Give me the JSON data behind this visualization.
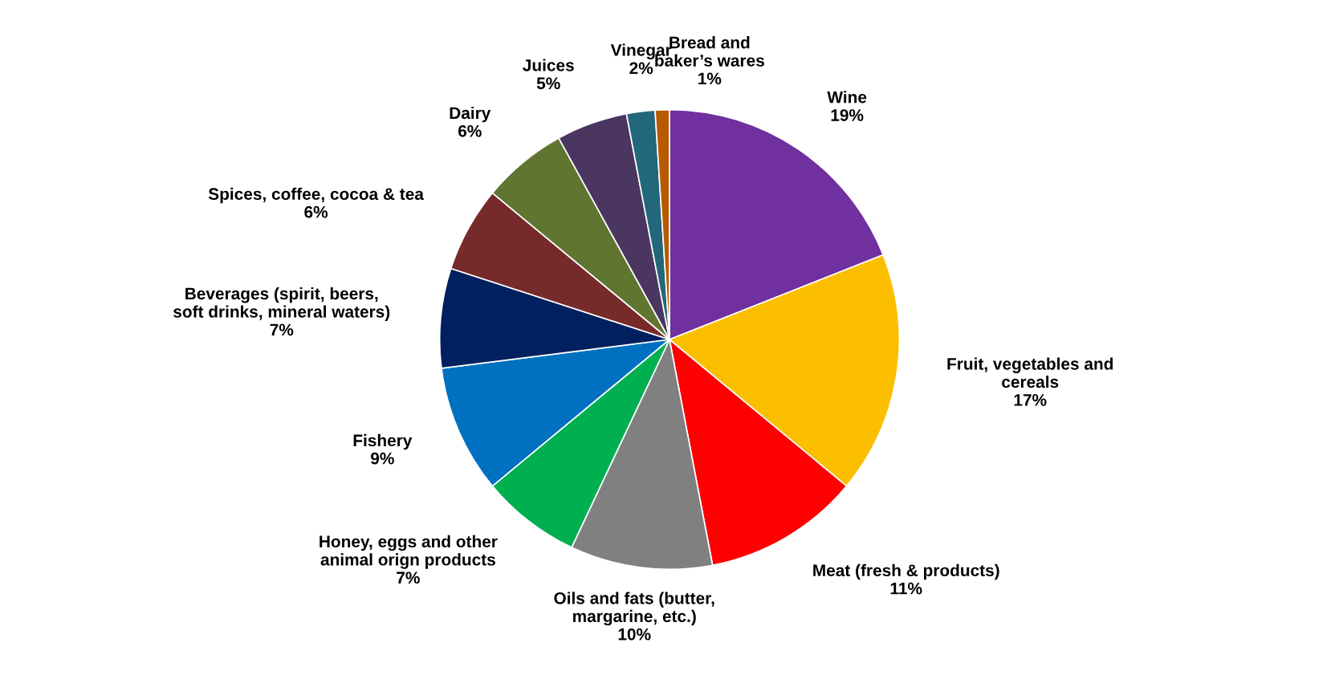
{
  "chart_data": {
    "type": "pie",
    "categories": [
      "Wine",
      "Fruit, vegetables and\ncereals",
      "Meat (fresh & products)",
      "Oils and fats (butter,\nmargarine, etc.)",
      "Honey, eggs and other\nanimal orign products",
      "Fishery",
      "Beverages (spirit, beers,\nsoft drinks, mineral waters)",
      "Spices, coffee, cocoa & tea",
      "Dairy",
      "Juices",
      "Vinegar",
      "Bread and\nbaker’s wares"
    ],
    "values": [
      19,
      17,
      11,
      10,
      7,
      9,
      7,
      6,
      6,
      5,
      2,
      1
    ],
    "value_labels": [
      "19%",
      "17%",
      "11%",
      "10%",
      "7%",
      "9%",
      "7%",
      "6%",
      "6%",
      "5%",
      "2%",
      "1%"
    ],
    "colors": [
      "#7030a0",
      "#fbbf00",
      "#ff0000",
      "#808080",
      "#00b050",
      "#0070c0",
      "#002060",
      "#772a2a",
      "#5f7530",
      "#4a3660",
      "#23677a",
      "#b85b00"
    ],
    "legend": false
  }
}
